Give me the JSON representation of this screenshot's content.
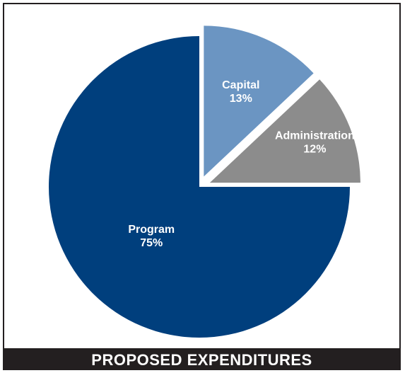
{
  "caption": "PROPOSED EXPENDITURES",
  "chart_data": {
    "type": "pie",
    "title": "PROPOSED EXPENDITURES",
    "slices": [
      {
        "label": "Capital",
        "value": 13,
        "value_label": "13%",
        "color": "#6b95c2",
        "exploded": true
      },
      {
        "label": "Administration",
        "value": 12,
        "value_label": "12%",
        "color": "#8c8c8c",
        "exploded": true
      },
      {
        "label": "Program",
        "value": 75,
        "value_label": "75%",
        "color": "#003f7d",
        "exploded": false
      }
    ],
    "start_angle_deg": 0,
    "direction": "clockwise"
  }
}
